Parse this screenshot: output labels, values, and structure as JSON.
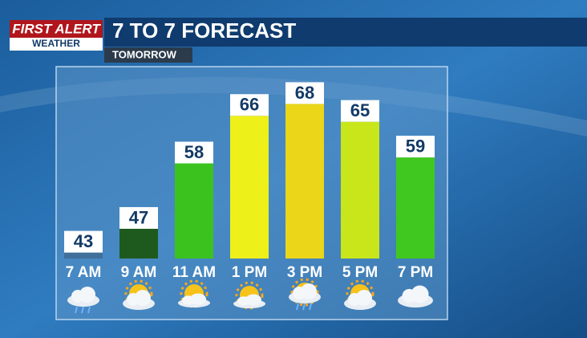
{
  "header": {
    "logo_top": "FIRST ALERT",
    "logo_bottom": "WEATHER",
    "title": "7 TO 7 FORECAST",
    "subtitle": "TOMORROW"
  },
  "chart_data": {
    "type": "bar",
    "categories": [
      "7 AM",
      "9 AM",
      "11 AM",
      "1 PM",
      "3 PM",
      "5 PM",
      "7 PM"
    ],
    "values": [
      43,
      47,
      58,
      66,
      68,
      65,
      59
    ],
    "colors": [
      "#3f6f9a",
      "#1e5a1e",
      "#3cc21e",
      "#eef01a",
      "#ecd61a",
      "#c8e61a",
      "#40c820"
    ],
    "ylim": [
      42,
      74
    ]
  }
}
